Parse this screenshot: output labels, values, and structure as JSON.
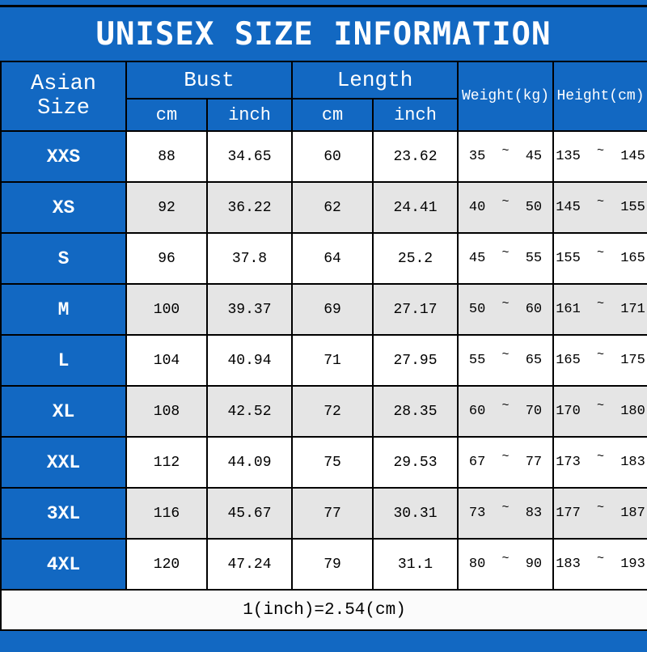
{
  "title": "UNISEX SIZE INFORMATION",
  "colors": {
    "header_blue": "#1268c2",
    "alt_row_gray": "#e5e5e5",
    "grid_black": "#000000",
    "text_white": "#ffffff",
    "text_black": "#000000"
  },
  "chart_data": {
    "type": "table",
    "title": "UNISEX SIZE INFORMATION",
    "corner_header": "Asian Size",
    "column_groups": [
      {
        "label": "Bust",
        "children": [
          "cm",
          "inch"
        ]
      },
      {
        "label": "Length",
        "children": [
          "cm",
          "inch"
        ]
      },
      {
        "label": "Weight(kg)",
        "children": []
      },
      {
        "label": "Height(cm)",
        "children": []
      }
    ],
    "columns": [
      "Asian Size",
      "Bust cm",
      "Bust inch",
      "Length cm",
      "Length inch",
      "Weight(kg)",
      "Height(cm)"
    ],
    "rows": [
      {
        "size": "XXS",
        "bust_cm": "88",
        "bust_inch": "34.65",
        "length_cm": "60",
        "length_inch": "23.62",
        "weight": [
          "35",
          "45"
        ],
        "height": [
          "135",
          "145"
        ]
      },
      {
        "size": "XS",
        "bust_cm": "92",
        "bust_inch": "36.22",
        "length_cm": "62",
        "length_inch": "24.41",
        "weight": [
          "40",
          "50"
        ],
        "height": [
          "145",
          "155"
        ]
      },
      {
        "size": "S",
        "bust_cm": "96",
        "bust_inch": "37.8",
        "length_cm": "64",
        "length_inch": "25.2",
        "weight": [
          "45",
          "55"
        ],
        "height": [
          "155",
          "165"
        ]
      },
      {
        "size": "M",
        "bust_cm": "100",
        "bust_inch": "39.37",
        "length_cm": "69",
        "length_inch": "27.17",
        "weight": [
          "50",
          "60"
        ],
        "height": [
          "161",
          "171"
        ]
      },
      {
        "size": "L",
        "bust_cm": "104",
        "bust_inch": "40.94",
        "length_cm": "71",
        "length_inch": "27.95",
        "weight": [
          "55",
          "65"
        ],
        "height": [
          "165",
          "175"
        ]
      },
      {
        "size": "XL",
        "bust_cm": "108",
        "bust_inch": "42.52",
        "length_cm": "72",
        "length_inch": "28.35",
        "weight": [
          "60",
          "70"
        ],
        "height": [
          "170",
          "180"
        ]
      },
      {
        "size": "XXL",
        "bust_cm": "112",
        "bust_inch": "44.09",
        "length_cm": "75",
        "length_inch": "29.53",
        "weight": [
          "67",
          "77"
        ],
        "height": [
          "173",
          "183"
        ]
      },
      {
        "size": "3XL",
        "bust_cm": "116",
        "bust_inch": "45.67",
        "length_cm": "77",
        "length_inch": "30.31",
        "weight": [
          "73",
          "83"
        ],
        "height": [
          "177",
          "187"
        ]
      },
      {
        "size": "4XL",
        "bust_cm": "120",
        "bust_inch": "47.24",
        "length_cm": "79",
        "length_inch": "31.1",
        "weight": [
          "80",
          "90"
        ],
        "height": [
          "183",
          "193"
        ]
      }
    ],
    "footnote": "1(inch)=2.54(cm)",
    "range_separator": "~"
  }
}
